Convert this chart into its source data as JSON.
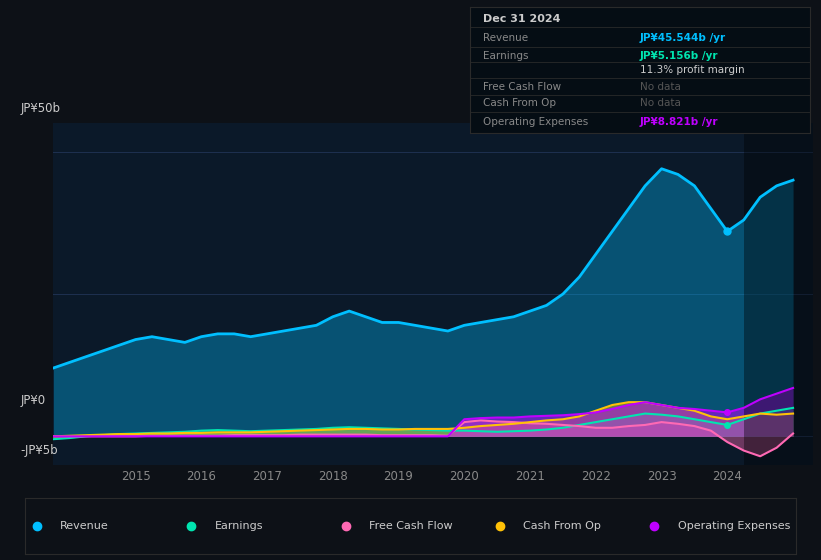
{
  "bg_color": "#0d1117",
  "chart_bg": "#0b1929",
  "ylim": [
    -5,
    55
  ],
  "xlim_start": 2013.75,
  "xlim_end": 2025.3,
  "years": [
    2013.75,
    2014.0,
    2014.25,
    2014.5,
    2014.75,
    2015.0,
    2015.25,
    2015.5,
    2015.75,
    2016.0,
    2016.25,
    2016.5,
    2016.75,
    2017.0,
    2017.25,
    2017.5,
    2017.75,
    2018.0,
    2018.25,
    2018.5,
    2018.75,
    2019.0,
    2019.25,
    2019.5,
    2019.75,
    2020.0,
    2020.25,
    2020.5,
    2020.75,
    2021.0,
    2021.25,
    2021.5,
    2021.75,
    2022.0,
    2022.25,
    2022.5,
    2022.75,
    2023.0,
    2023.25,
    2023.5,
    2023.75,
    2024.0,
    2024.25,
    2024.5,
    2024.75,
    2025.0
  ],
  "revenue": [
    12,
    13,
    14,
    15,
    16,
    17,
    17.5,
    17,
    16.5,
    17.5,
    18,
    18,
    17.5,
    18,
    18.5,
    19,
    19.5,
    21,
    22,
    21,
    20,
    20,
    19.5,
    19,
    18.5,
    19.5,
    20,
    20.5,
    21,
    22,
    23,
    25,
    28,
    32,
    36,
    40,
    44,
    47,
    46,
    44,
    40,
    36,
    38,
    42,
    44,
    45
  ],
  "earnings": [
    -0.5,
    -0.3,
    0.0,
    0.2,
    0.4,
    0.5,
    0.6,
    0.7,
    0.8,
    1.0,
    1.1,
    1.0,
    0.9,
    1.0,
    1.1,
    1.2,
    1.3,
    1.5,
    1.6,
    1.5,
    1.4,
    1.3,
    1.2,
    1.1,
    1.0,
    1.0,
    0.9,
    0.8,
    0.9,
    1.0,
    1.2,
    1.5,
    2.0,
    2.5,
    3.0,
    3.5,
    4.0,
    3.8,
    3.5,
    3.0,
    2.5,
    2.0,
    3.0,
    4.0,
    4.5,
    5.0
  ],
  "free_cash_flow": [
    0.0,
    0.0,
    0.0,
    0.0,
    0.0,
    0.0,
    0.1,
    0.1,
    0.1,
    0.1,
    0.1,
    0.2,
    0.2,
    0.2,
    0.2,
    0.3,
    0.3,
    0.3,
    0.3,
    0.3,
    0.2,
    0.2,
    0.2,
    0.2,
    0.1,
    2.5,
    2.8,
    2.6,
    2.5,
    2.3,
    2.2,
    2.0,
    1.8,
    1.5,
    1.5,
    1.8,
    2.0,
    2.5,
    2.2,
    1.8,
    1.0,
    -1.0,
    -2.5,
    -3.5,
    -2.0,
    0.5
  ],
  "cash_from_op": [
    0.0,
    0.1,
    0.2,
    0.3,
    0.4,
    0.4,
    0.5,
    0.5,
    0.6,
    0.6,
    0.7,
    0.7,
    0.7,
    0.8,
    0.9,
    1.0,
    1.1,
    1.2,
    1.3,
    1.3,
    1.2,
    1.2,
    1.3,
    1.3,
    1.3,
    1.5,
    1.8,
    2.0,
    2.2,
    2.5,
    2.8,
    3.0,
    3.5,
    4.5,
    5.5,
    6.0,
    6.0,
    5.5,
    5.0,
    4.5,
    3.5,
    3.0,
    3.5,
    4.0,
    3.8,
    4.0
  ],
  "op_expenses": [
    0.0,
    0.0,
    0.0,
    0.0,
    0.0,
    0.0,
    0.0,
    0.0,
    0.0,
    0.0,
    0.0,
    0.0,
    0.0,
    0.0,
    0.0,
    0.0,
    0.0,
    0.0,
    0.0,
    0.0,
    0.0,
    0.0,
    0.0,
    0.0,
    0.0,
    3.0,
    3.2,
    3.3,
    3.3,
    3.5,
    3.6,
    3.7,
    3.9,
    4.2,
    4.8,
    5.5,
    6.0,
    5.5,
    5.0,
    4.8,
    4.5,
    4.2,
    5.0,
    6.5,
    7.5,
    8.5
  ],
  "revenue_color": "#00bfff",
  "earnings_color": "#00e5b0",
  "fcf_color": "#ff69b4",
  "cash_op_color": "#ffc107",
  "op_exp_color": "#bf00ff",
  "grid_color": "#1e3050",
  "ylabel_top": "JP¥50b",
  "ylabel_zero": "JP¥0",
  "ylabel_neg": "-JP¥5b",
  "xtick_labels": [
    "2015",
    "2016",
    "2017",
    "2018",
    "2019",
    "2020",
    "2021",
    "2022",
    "2023",
    "2024"
  ],
  "xtick_positions": [
    2015,
    2016,
    2017,
    2018,
    2019,
    2020,
    2021,
    2022,
    2023,
    2024
  ],
  "tooltip_bg": "#050d14",
  "tooltip_border": "#2a2a2a",
  "dark_overlay_start": 2024.25,
  "legend_bg": "#0d1117",
  "legend_border": "#2a2a2a"
}
